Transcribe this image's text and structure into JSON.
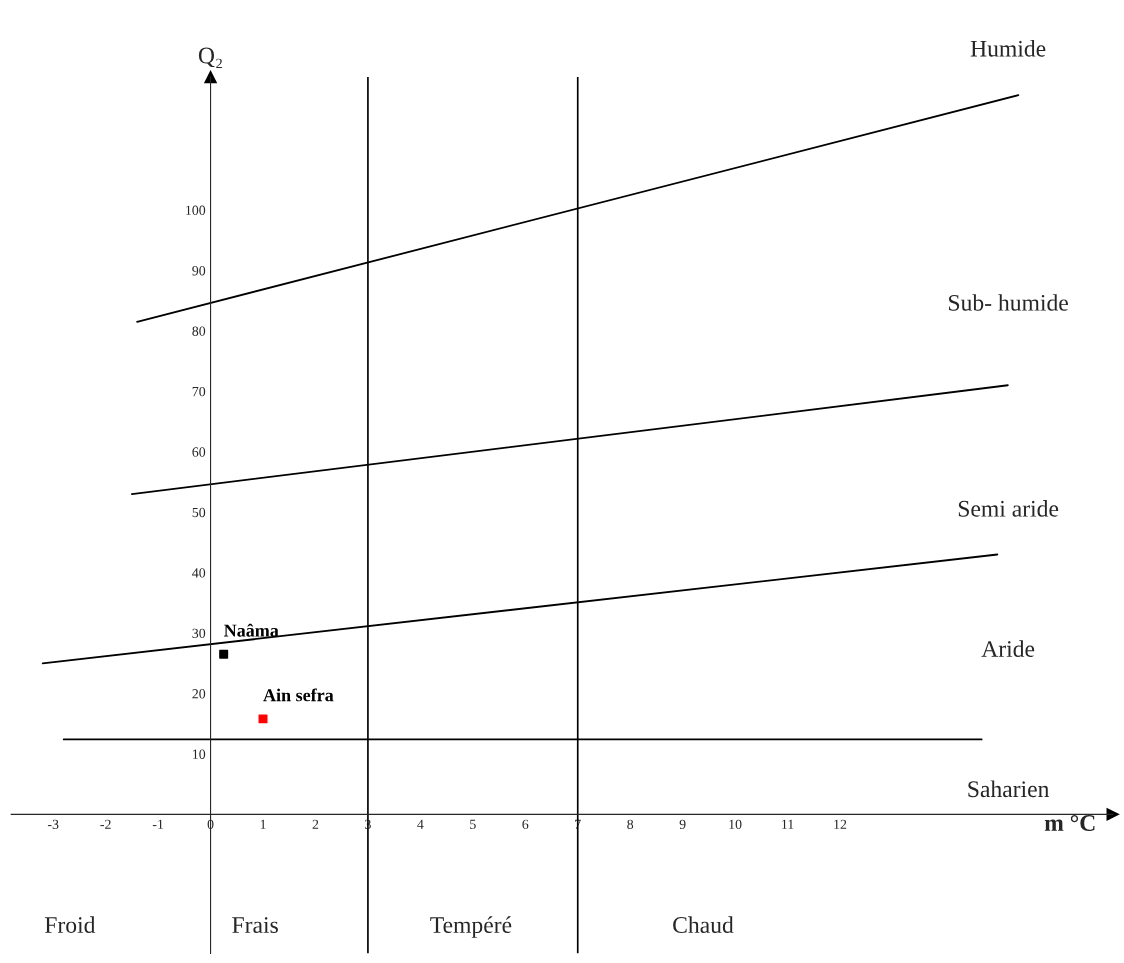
{
  "chart_data": {
    "type": "line",
    "xlabel": "m °C",
    "ylabel": "Q₂",
    "xlim": [
      -3.8,
      17.2
    ],
    "ylim": [
      -23,
      122
    ],
    "xticks": [
      -3,
      -2,
      -1,
      0,
      1,
      2,
      3,
      4,
      5,
      6,
      7,
      8,
      9,
      10,
      11,
      12
    ],
    "yticks": [
      10,
      20,
      30,
      40,
      50,
      60,
      70,
      80,
      90,
      100
    ],
    "series": [
      {
        "color": "#000000",
        "x": [
          -1.4,
          15.4
        ],
        "values": [
          81.5,
          119
        ]
      },
      {
        "color": "#000000",
        "x": [
          -1.5,
          15.2
        ],
        "values": [
          53,
          71
        ]
      },
      {
        "color": "#000000",
        "x": [
          -3.2,
          15
        ],
        "values": [
          25,
          43
        ]
      },
      {
        "color": "#000000",
        "x": [
          -2.8,
          14.7
        ],
        "values": [
          12.4,
          12.4
        ]
      },
      {
        "type": "scatter",
        "name": "Naâma",
        "color": "#000000",
        "marker": "square",
        "x": [
          0.25
        ],
        "values": [
          26.5
        ]
      },
      {
        "type": "scatter",
        "name": "Ain sefra",
        "color": "#ff0000",
        "marker": "square",
        "x": [
          1.0
        ],
        "values": [
          15.8
        ]
      }
    ],
    "ref_lines": [
      {
        "axis": "x",
        "value": 3,
        "color": "#000000"
      },
      {
        "axis": "x",
        "value": 7,
        "color": "#000000"
      }
    ],
    "annotations": [
      "Humide",
      "Sub- humide",
      "Semi aride",
      "Aride",
      "Saharien",
      "Froid",
      "Frais",
      "Tempéré",
      "Chaud"
    ]
  }
}
